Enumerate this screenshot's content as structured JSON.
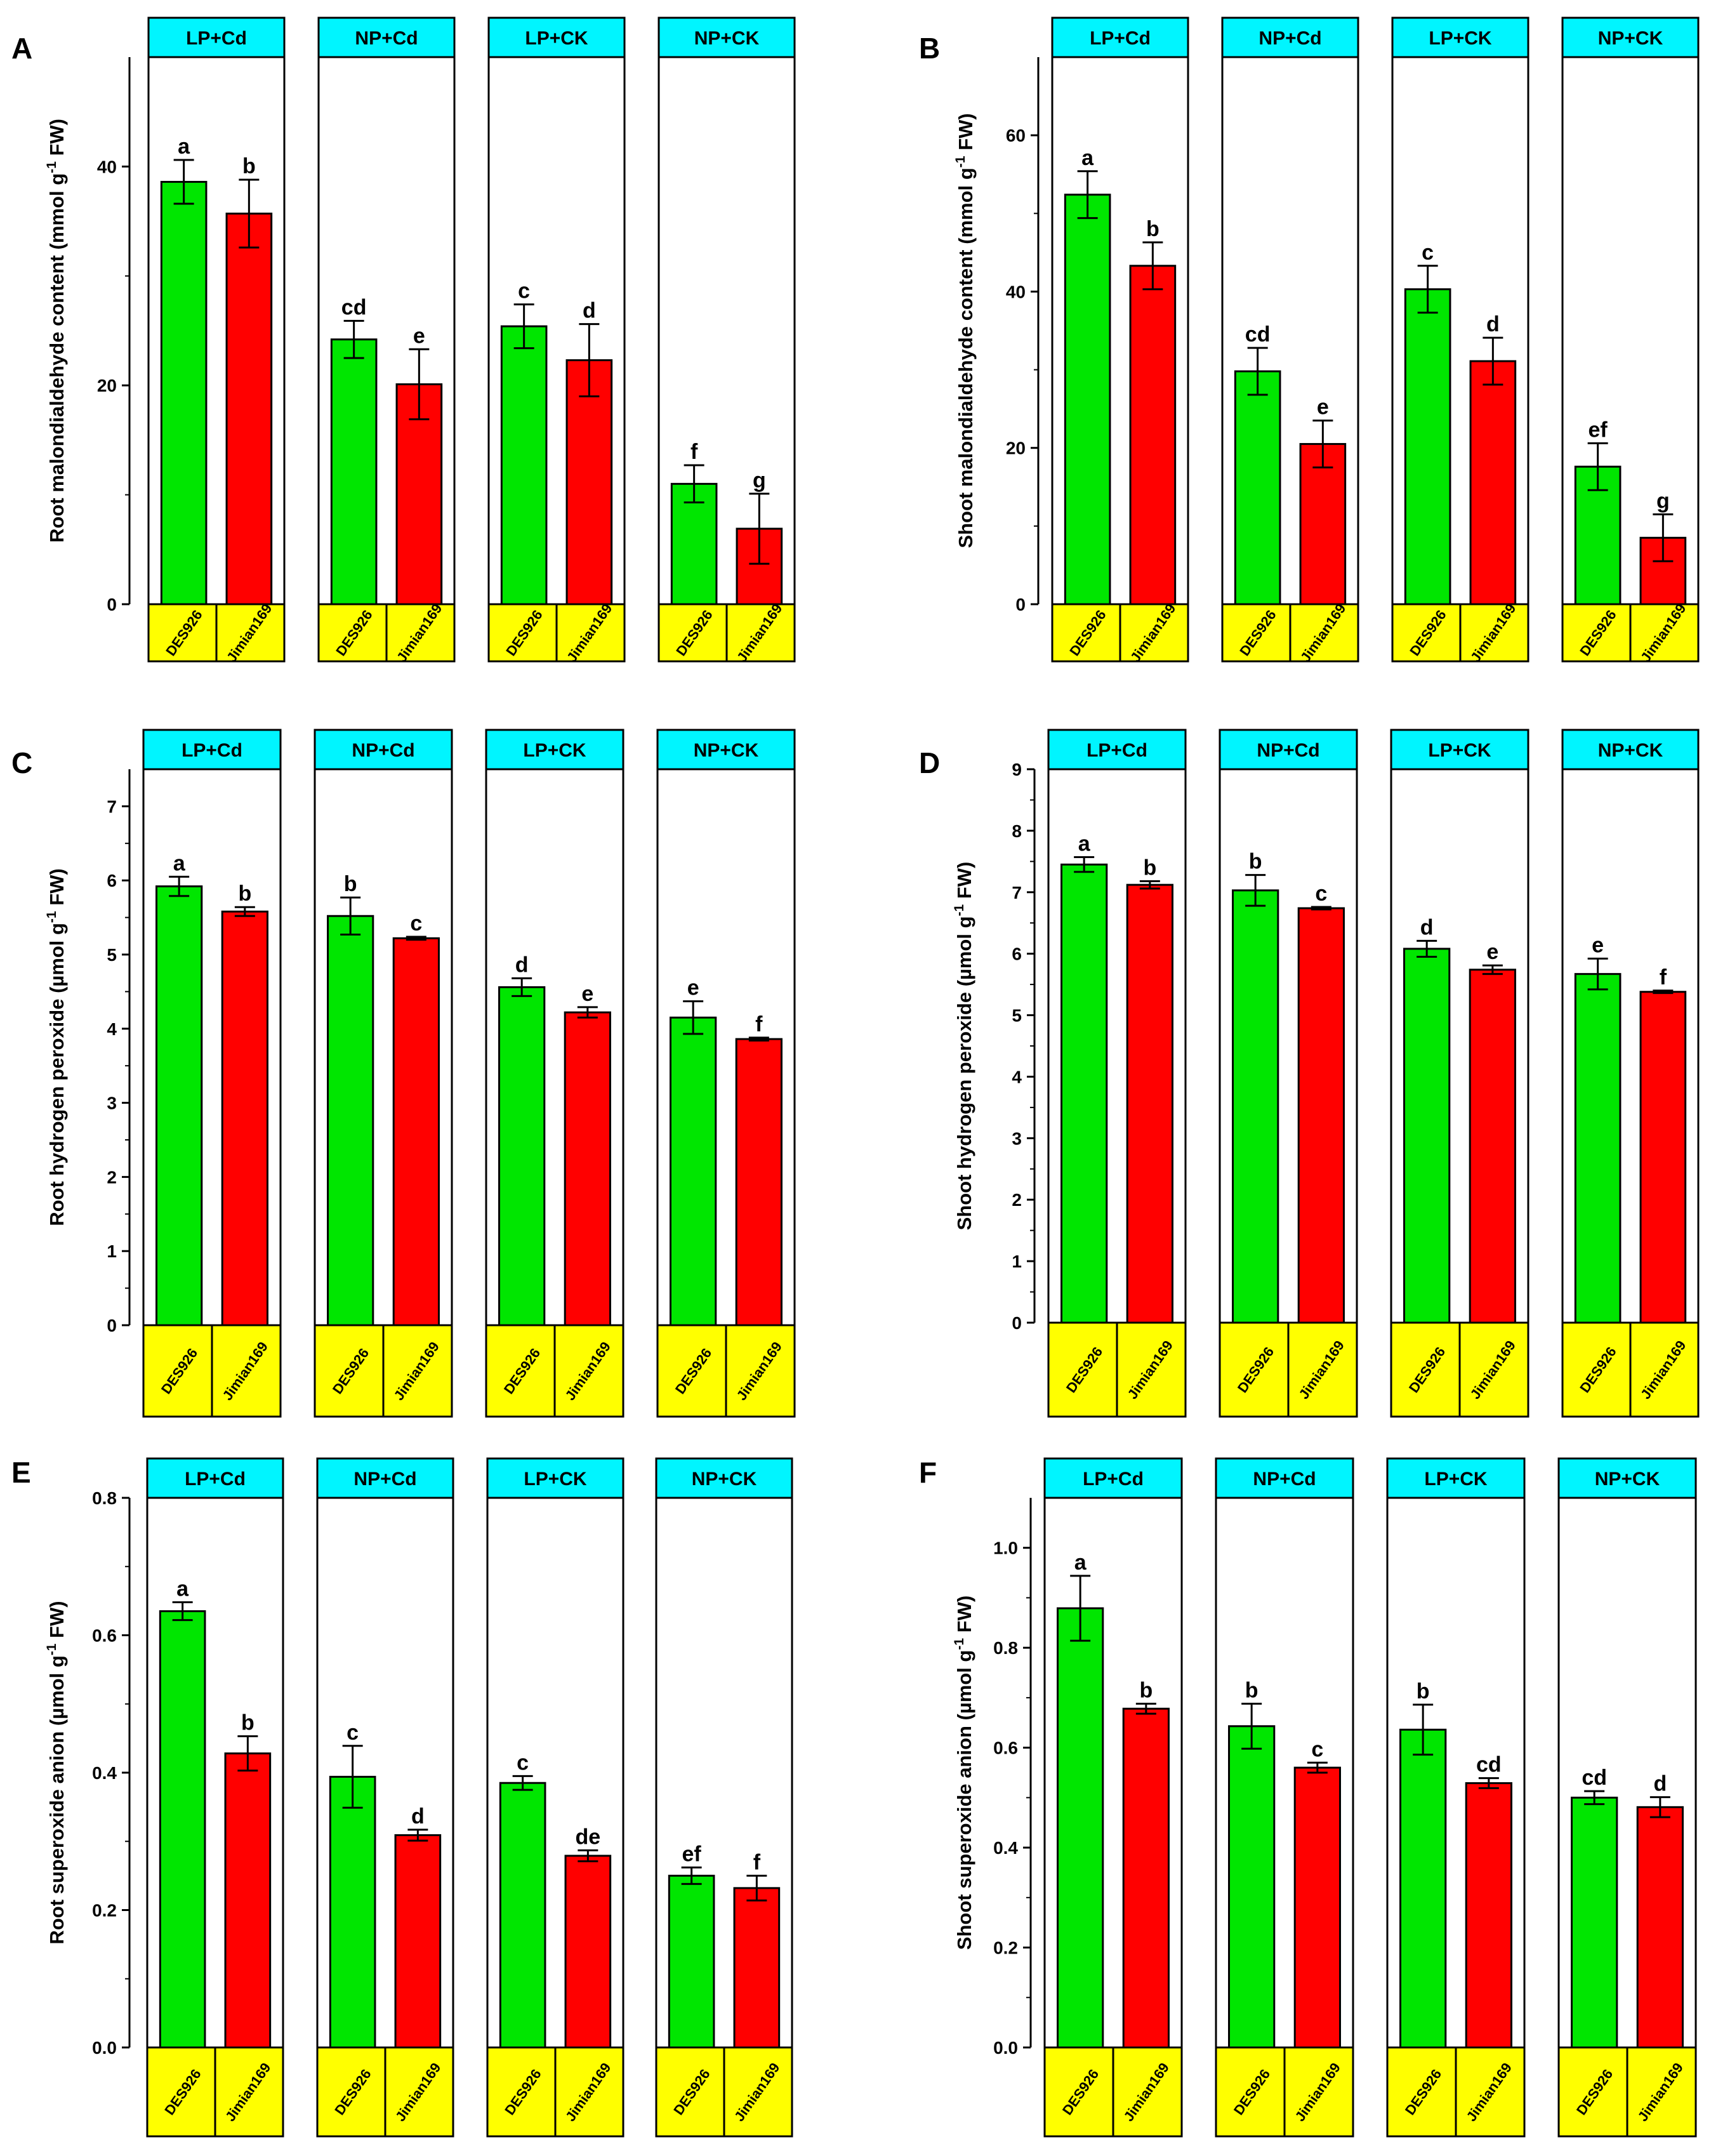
{
  "figure": {
    "strip_color": "#00f5ff",
    "cultivar_strip_color": "#ffff00",
    "colors": {
      "DES926": "#00e600",
      "Jimian169": "#ff0000"
    }
  },
  "chart_data": [
    {
      "type": "bar",
      "panel_label": "A",
      "ylabel": "Root malondialdehyde content (mmol g",
      "ylabel_sup": "-1",
      "ylabel_tail": " FW)",
      "ylim": [
        0,
        50
      ],
      "yticks": [
        0,
        20,
        40
      ],
      "treatments": [
        "LP+Cd",
        "NP+Cd",
        "LP+CK",
        "NP+CK"
      ],
      "cultivars": [
        "DES926",
        "Jimian169"
      ],
      "series": [
        {
          "name": "DES926",
          "values": [
            38.6,
            24.2,
            25.4,
            11.0
          ],
          "errors": [
            2.0,
            1.7,
            2.0,
            1.7
          ],
          "letters": [
            "a",
            "cd",
            "c",
            "f"
          ]
        },
        {
          "name": "Jimian169",
          "values": [
            35.7,
            20.1,
            22.3,
            6.9
          ],
          "errors": [
            3.1,
            3.2,
            3.3,
            3.2
          ],
          "letters": [
            "b",
            "e",
            "d",
            "g"
          ]
        }
      ]
    },
    {
      "type": "bar",
      "panel_label": "B",
      "ylabel": "Shoot malondialdehyde content (mmol g",
      "ylabel_sup": "-1",
      "ylabel_tail": " FW)",
      "ylim": [
        0,
        70
      ],
      "yticks": [
        0,
        20,
        40,
        60
      ],
      "treatments": [
        "LP+Cd",
        "NP+Cd",
        "LP+CK",
        "NP+CK"
      ],
      "cultivars": [
        "DES926",
        "Jimian169"
      ],
      "series": [
        {
          "name": "DES926",
          "values": [
            52.4,
            29.8,
            40.3,
            17.6
          ],
          "errors": [
            3.0,
            3.0,
            3.0,
            3.0
          ],
          "letters": [
            "a",
            "cd",
            "c",
            "ef"
          ]
        },
        {
          "name": "Jimian169",
          "values": [
            43.3,
            20.5,
            31.1,
            8.5
          ],
          "errors": [
            3.0,
            3.0,
            3.0,
            3.0
          ],
          "letters": [
            "b",
            "e",
            "d",
            "g"
          ]
        }
      ]
    },
    {
      "type": "bar",
      "panel_label": "C",
      "ylabel": "Root hydrogen peroxide (µmol g",
      "ylabel_sup": "-1",
      "ylabel_tail": " FW)",
      "ylim": [
        0,
        7.5
      ],
      "yticks": [
        0,
        1,
        2,
        3,
        4,
        5,
        6,
        7
      ],
      "treatments": [
        "LP+Cd",
        "NP+Cd",
        "LP+CK",
        "NP+CK"
      ],
      "cultivars": [
        "DES926",
        "Jimian169"
      ],
      "series": [
        {
          "name": "DES926",
          "values": [
            5.92,
            5.52,
            4.56,
            4.15
          ],
          "errors": [
            0.13,
            0.25,
            0.12,
            0.22
          ],
          "letters": [
            "a",
            "b",
            "d",
            "e"
          ]
        },
        {
          "name": "Jimian169",
          "values": [
            5.58,
            5.22,
            4.22,
            3.86
          ],
          "errors": [
            0.06,
            0.02,
            0.07,
            0.02
          ],
          "letters": [
            "b",
            "c",
            "e",
            "f"
          ]
        }
      ]
    },
    {
      "type": "bar",
      "panel_label": "D",
      "ylabel": "Shoot hydrogen peroxide (µmol g",
      "ylabel_sup": "-1",
      "ylabel_tail": " FW)",
      "ylim": [
        0,
        9
      ],
      "yticks": [
        0,
        1,
        2,
        3,
        4,
        5,
        6,
        7,
        8,
        9
      ],
      "treatments": [
        "LP+Cd",
        "NP+Cd",
        "LP+CK",
        "NP+CK"
      ],
      "cultivars": [
        "DES926",
        "Jimian169"
      ],
      "series": [
        {
          "name": "DES926",
          "values": [
            7.45,
            7.03,
            6.08,
            5.67
          ],
          "errors": [
            0.12,
            0.25,
            0.13,
            0.25
          ],
          "letters": [
            "a",
            "b",
            "d",
            "e"
          ]
        },
        {
          "name": "Jimian169",
          "values": [
            7.12,
            6.74,
            5.74,
            5.38
          ],
          "errors": [
            0.06,
            0.02,
            0.07,
            0.02
          ],
          "letters": [
            "b",
            "c",
            "e",
            "f"
          ]
        }
      ]
    },
    {
      "type": "bar",
      "panel_label": "E",
      "ylabel": "Root superoxide anion (µmol g",
      "ylabel_sup": "-1",
      "ylabel_tail": " FW)",
      "ylim": [
        0,
        0.8
      ],
      "yticks": [
        0.0,
        0.2,
        0.4,
        0.6,
        0.8
      ],
      "treatments": [
        "LP+Cd",
        "NP+Cd",
        "LP+CK",
        "NP+CK"
      ],
      "cultivars": [
        "DES926",
        "Jimian169"
      ],
      "series": [
        {
          "name": "DES926",
          "values": [
            0.635,
            0.394,
            0.385,
            0.25
          ],
          "errors": [
            0.013,
            0.045,
            0.01,
            0.012
          ],
          "letters": [
            "a",
            "c",
            "c",
            "ef"
          ]
        },
        {
          "name": "Jimian169",
          "values": [
            0.428,
            0.309,
            0.279,
            0.232
          ],
          "errors": [
            0.025,
            0.008,
            0.008,
            0.018
          ],
          "letters": [
            "b",
            "d",
            "de",
            "f"
          ]
        }
      ]
    },
    {
      "type": "bar",
      "panel_label": "F",
      "ylabel": "Shoot superoxide anion (µmol g",
      "ylabel_sup": "-1",
      "ylabel_tail": " FW)",
      "ylim": [
        0,
        1.1
      ],
      "yticks": [
        0.0,
        0.2,
        0.4,
        0.6,
        0.8,
        1.0
      ],
      "treatments": [
        "LP+Cd",
        "NP+Cd",
        "LP+CK",
        "NP+CK"
      ],
      "cultivars": [
        "DES926",
        "Jimian169"
      ],
      "series": [
        {
          "name": "DES926",
          "values": [
            0.879,
            0.643,
            0.636,
            0.5
          ],
          "errors": [
            0.065,
            0.045,
            0.05,
            0.013
          ],
          "letters": [
            "a",
            "b",
            "b",
            "cd"
          ]
        },
        {
          "name": "Jimian169",
          "values": [
            0.678,
            0.56,
            0.529,
            0.481
          ],
          "errors": [
            0.01,
            0.01,
            0.01,
            0.02
          ],
          "letters": [
            "b",
            "c",
            "cd",
            "d"
          ]
        }
      ]
    }
  ]
}
